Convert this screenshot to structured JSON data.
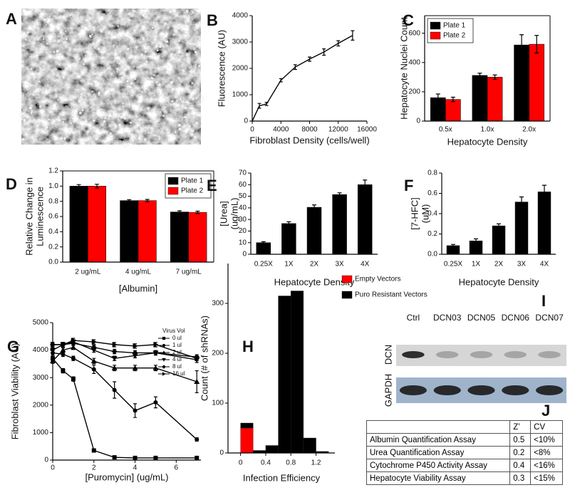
{
  "image_panel": {
    "label": "A"
  },
  "chart_data": [
    {
      "label": "B",
      "type": "line",
      "ylabel": "Fluorescence (AU)",
      "xlabel": "Fibroblast Density (cells/well)",
      "x": [
        0,
        1000,
        2000,
        4000,
        6000,
        8000,
        10000,
        12000,
        14000
      ],
      "values": [
        0,
        580,
        650,
        1550,
        2050,
        2350,
        2620,
        2950,
        3250
      ],
      "errors": [
        0,
        90,
        60,
        60,
        90,
        80,
        120,
        100,
        180
      ],
      "color": "#000000",
      "xlim": [
        0,
        16000
      ],
      "xticks": [
        0,
        4000,
        8000,
        12000,
        16000
      ],
      "ylim": [
        0,
        4000
      ],
      "yticks": [
        0,
        1000,
        2000,
        3000,
        4000
      ]
    },
    {
      "label": "C",
      "type": "bar",
      "ylabel": "Hepatocyte Nuclei Count",
      "xlabel": "Hepatocyte Density",
      "categories": [
        "0.5x",
        "1.0x",
        "2.0x"
      ],
      "series": [
        {
          "name": "Plate 1",
          "color": "#000000",
          "values": [
            160,
            312,
            520
          ],
          "errors": [
            25,
            15,
            70
          ]
        },
        {
          "name": "Plate 2",
          "color": "#ff0000",
          "values": [
            148,
            300,
            525
          ],
          "errors": [
            15,
            15,
            60
          ]
        }
      ],
      "ylim": [
        0,
        720
      ],
      "yticks": [
        0,
        200,
        400,
        600
      ],
      "legend": "upper left",
      "box": true
    },
    {
      "label": "D",
      "type": "bar",
      "ylabel": [
        "Relative Change in",
        "Luminescence"
      ],
      "xlabel": "[Albumin]",
      "categories": [
        "2 ug/mL",
        "4 ug/mL",
        "7 ug/mL"
      ],
      "series": [
        {
          "name": "Plate 1",
          "color": "#000000",
          "values": [
            1.0,
            0.81,
            0.66
          ],
          "errors": [
            0.02,
            0.012,
            0.015
          ]
        },
        {
          "name": "Plate 2",
          "color": "#ff0000",
          "values": [
            1.0,
            0.81,
            0.655
          ],
          "errors": [
            0.025,
            0.015,
            0.015
          ]
        }
      ],
      "ylim": [
        0,
        1.2
      ],
      "yticks": [
        {
          "value": 0,
          "label": "0.0"
        },
        0.2,
        0.4,
        0.6,
        0.8,
        {
          "value": 1,
          "label": "1.0"
        },
        1.2
      ],
      "legend": "upper right",
      "box": true
    },
    {
      "label": "E",
      "type": "bar",
      "ylabel": [
        "[Urea]",
        "(ug/mL)"
      ],
      "xlabel": "Hepatocyte Density",
      "categories": [
        "0.25X",
        "1X",
        "2X",
        "3X",
        "4X"
      ],
      "values": [
        10,
        26.5,
        40.5,
        51.5,
        60
      ],
      "errors": [
        0.8,
        1.5,
        2,
        1.5,
        4
      ],
      "color": "#000000",
      "ylim": [
        0,
        70
      ],
      "yticks": [
        0,
        10,
        20,
        30,
        40,
        50,
        60,
        70
      ]
    },
    {
      "label": "F",
      "type": "bar",
      "ylabel": [
        "[7-HFC]",
        "(uM)"
      ],
      "xlabel": "Hepatocyte Density",
      "categories": [
        "0.25X",
        "1X",
        "2X",
        "3X",
        "4X"
      ],
      "values": [
        0.085,
        0.132,
        0.28,
        0.515,
        0.615
      ],
      "errors": [
        0.012,
        0.02,
        0.02,
        0.05,
        0.065
      ],
      "color": "#000000",
      "ylim": [
        0,
        0.8
      ],
      "yticks": [
        {
          "value": 0,
          "label": "0.0"
        },
        0.2,
        0.4,
        0.6,
        0.8
      ]
    },
    {
      "label": "G",
      "type": "line",
      "ylabel": "Fibroblast Viability (AU)",
      "xlabel": "[Puromycin] (ug/mL)",
      "x": [
        0,
        0.5,
        1,
        2,
        3,
        4,
        5,
        7
      ],
      "series": [
        {
          "name": "0 ul",
          "color": "#000000",
          "marker": "square",
          "values": [
            3700,
            3250,
            2950,
            350,
            100,
            80,
            80,
            80
          ],
          "errors": [
            80,
            80,
            80,
            50,
            30,
            30,
            30,
            30
          ]
        },
        {
          "name": "1 ul",
          "color": "#000000",
          "marker": "circle",
          "values": [
            3900,
            3850,
            3700,
            3300,
            2550,
            1800,
            2100,
            750
          ],
          "errors": [
            80,
            80,
            80,
            150,
            300,
            250,
            200,
            60
          ]
        },
        {
          "name": "2 ul",
          "color": "#000000",
          "marker": "triangle-up",
          "values": [
            3600,
            4000,
            4100,
            3600,
            3350,
            3350,
            3350,
            2850
          ],
          "errors": [
            80,
            80,
            80,
            100,
            100,
            100,
            100,
            400
          ]
        },
        {
          "name": "4 ul",
          "color": "#000000",
          "marker": "triangle-down",
          "values": [
            4000,
            4200,
            4300,
            4000,
            3700,
            3800,
            3900,
            3650
          ],
          "errors": [
            80,
            80,
            80,
            80,
            80,
            80,
            80,
            100
          ]
        },
        {
          "name": "8 ul",
          "color": "#000000",
          "marker": "diamond",
          "values": [
            4200,
            4200,
            4250,
            4100,
            3950,
            3900,
            3900,
            3750
          ],
          "errors": [
            80,
            80,
            80,
            80,
            80,
            80,
            80,
            80
          ]
        },
        {
          "name": "16 ul",
          "color": "#000000",
          "marker": "triangle-right",
          "values": [
            4200,
            4200,
            4350,
            4300,
            4200,
            4150,
            4200,
            3700
          ],
          "errors": [
            80,
            80,
            80,
            80,
            80,
            80,
            80,
            80
          ]
        }
      ],
      "xlim": [
        0,
        7.2
      ],
      "xticks": [
        0,
        2,
        4,
        6
      ],
      "ylim": [
        0,
        5000
      ],
      "yticks": [
        0,
        1000,
        2000,
        3000,
        4000,
        5000
      ],
      "legend": "upper right",
      "legend_title": "Virus Vol"
    },
    {
      "label": "H",
      "type": "histogram",
      "ylabel": "Count (# of shRNAs)",
      "xlabel": "Infection Efficiency",
      "bins": [
        0,
        0.2,
        0.4,
        0.6,
        0.8,
        1.0,
        1.2,
        1.4
      ],
      "series": [
        {
          "name": "Empty Vectors",
          "color": "#ff0000",
          "values": [
            50,
            0,
            0,
            0,
            0,
            0,
            0
          ]
        },
        {
          "name": "Puro Resistant Vectors",
          "color": "#000000",
          "values": [
            10,
            5,
            15,
            315,
            325,
            30,
            3
          ]
        }
      ],
      "xlim": [
        -0.2,
        1.5
      ],
      "xticks": [
        0,
        0.4,
        0.8,
        1.2
      ],
      "ylim": [
        0,
        380
      ],
      "yticks": [
        0,
        100,
        200,
        300
      ],
      "legend": "right"
    }
  ],
  "blot": {
    "label": "I",
    "lanes": [
      "Ctrl",
      "DCN03",
      "DCN05",
      "DCN06",
      "DCN07"
    ],
    "rows": [
      "DCN",
      "GAPDH"
    ]
  },
  "table": {
    "label": "J",
    "columns": [
      "Z’",
      "CV"
    ],
    "rows": [
      [
        "Albumin Quantification Assay",
        "0.5",
        "<10%"
      ],
      [
        "Urea Quantification Assay",
        "0.2",
        "<8%"
      ],
      [
        "Cytochrome P450 Activity Assay",
        "0.4",
        "<16%"
      ],
      [
        "Hepatocyte Viability Assay",
        "0.3",
        "<15%"
      ]
    ]
  }
}
